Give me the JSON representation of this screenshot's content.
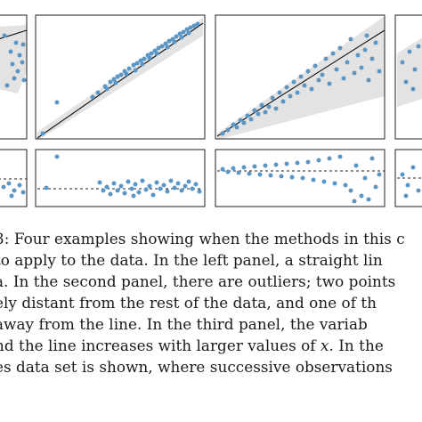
{
  "caption": {
    "lines": [
      "3: Four examples showing when the methods in this c",
      "to apply to the data. In the left panel, a straight lin",
      "a. In the second panel, there are outliers; two points",
      "ely distant from the rest of the data, and one of th",
      " away from the line. In the third panel, the variab",
      "nd the line increases with larger values of x. In the",
      "es data set is shown, where successive observations"
    ]
  },
  "colors": {
    "points": "#5b97c6",
    "band": "#e3e3e3",
    "line": "#111111",
    "frame": "#222222"
  },
  "chart_data": [
    {
      "type": "scatter",
      "panel": "residuals-2",
      "x": [
        5,
        8,
        20,
        28,
        32,
        36,
        40,
        44,
        46,
        50,
        54,
        58,
        62,
        66,
        70,
        72,
        76,
        80,
        84,
        88,
        92,
        96,
        100
      ],
      "y": [
        44,
        -2,
        1,
        3,
        -1,
        2,
        -2,
        0,
        2,
        -1,
        1,
        3,
        -2,
        0,
        2,
        -1,
        4,
        -3,
        1,
        0,
        -2,
        2,
        1
      ],
      "xlim": [
        0,
        105
      ],
      "ylim": [
        -10,
        50
      ],
      "reference_line": 0
    }
  ]
}
